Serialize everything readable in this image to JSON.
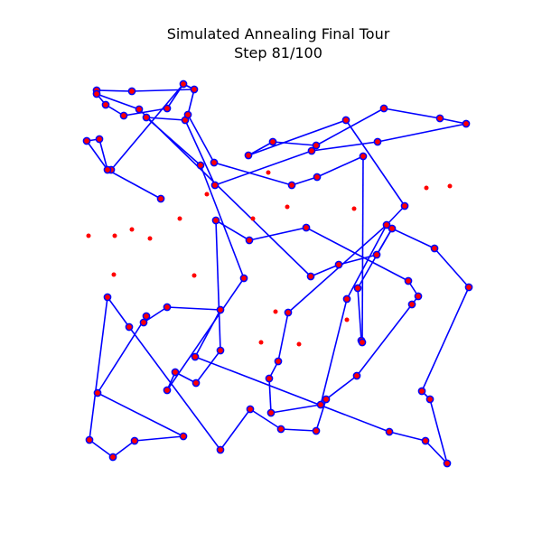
{
  "chart_data": {
    "type": "scatter",
    "title": "Simulated Annealing Final Tour",
    "subtitle": "Step 81/100",
    "xlabel": "",
    "ylabel": "",
    "grid": false,
    "axes_visible": false,
    "series_colors": {
      "tour": "#0000ff",
      "visited": "#ff0000",
      "unvisited": "#ff0000"
    },
    "tour_order": [
      [
        107,
        100
      ],
      [
        146,
        101
      ],
      [
        215,
        99
      ],
      [
        203,
        93
      ],
      [
        185,
        120
      ],
      [
        137,
        128
      ],
      [
        117,
        116
      ],
      [
        107,
        104
      ],
      [
        154,
        121
      ],
      [
        344,
        306
      ],
      [
        375,
        293
      ],
      [
        417,
        282
      ],
      [
        434,
        253
      ],
      [
        428,
        249
      ],
      [
        384,
        331
      ],
      [
        355,
        448
      ],
      [
        300,
        457
      ],
      [
        298,
        419
      ],
      [
        308,
        400
      ],
      [
        319,
        346
      ],
      [
        428,
        249
      ],
      [
        448,
        228
      ],
      [
        383,
        133
      ],
      [
        275,
        172
      ],
      [
        302,
        157
      ],
      [
        350,
        161
      ],
      [
        425,
        120
      ],
      [
        487,
        131
      ],
      [
        516,
        137
      ],
      [
        418,
        157
      ],
      [
        345,
        167
      ],
      [
        238,
        205
      ],
      [
        205,
        133
      ],
      [
        162,
        130
      ],
      [
        222,
        183
      ],
      [
        270,
        308
      ],
      [
        185,
        432
      ],
      [
        194,
        412
      ],
      [
        217,
        424
      ],
      [
        244,
        388
      ],
      [
        239,
        244
      ],
      [
        276,
        266
      ],
      [
        339,
        252
      ],
      [
        452,
        311
      ],
      [
        463,
        328
      ],
      [
        456,
        337
      ],
      [
        395,
        416
      ],
      [
        361,
        442
      ],
      [
        350,
        477
      ],
      [
        311,
        475
      ],
      [
        277,
        453
      ],
      [
        244,
        498
      ],
      [
        143,
        362
      ],
      [
        119,
        329
      ],
      [
        99,
        487
      ],
      [
        125,
        506
      ],
      [
        149,
        488
      ],
      [
        203,
        483
      ],
      [
        108,
        435
      ],
      [
        162,
        350
      ],
      [
        159,
        357
      ],
      [
        185,
        340
      ],
      [
        244,
        343
      ],
      [
        216,
        395
      ],
      [
        431,
        478
      ],
      [
        471,
        488
      ],
      [
        495,
        513
      ],
      [
        476,
        442
      ],
      [
        467,
        433
      ],
      [
        519,
        318
      ],
      [
        481,
        275
      ],
      [
        434,
        253
      ],
      [
        396,
        319
      ],
      [
        400,
        377
      ],
      [
        401,
        379
      ],
      [
        402,
        173
      ],
      [
        351,
        196
      ],
      [
        323,
        205
      ],
      [
        237,
        180
      ],
      [
        208,
        127
      ],
      [
        215,
        99
      ],
      [
        203,
        93
      ],
      [
        123,
        188
      ],
      [
        119,
        188
      ],
      [
        110,
        154
      ],
      [
        96,
        156
      ],
      [
        119,
        188
      ],
      [
        178,
        220
      ]
    ],
    "unvisited_cities": [
      [
        297,
        191
      ],
      [
        229,
        215
      ],
      [
        318,
        229
      ],
      [
        392,
        231
      ],
      [
        472,
        208
      ],
      [
        498,
        206
      ],
      [
        280,
        242
      ],
      [
        199,
        242
      ],
      [
        98,
        261
      ],
      [
        127,
        261
      ],
      [
        146,
        254
      ],
      [
        166,
        264
      ],
      [
        126,
        304
      ],
      [
        215,
        305
      ],
      [
        305,
        345
      ],
      [
        384,
        354
      ],
      [
        289,
        379
      ],
      [
        331,
        381
      ],
      [
        402,
        380
      ]
    ]
  }
}
